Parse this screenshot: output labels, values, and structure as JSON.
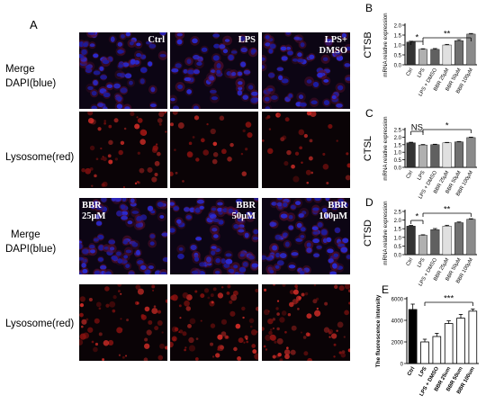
{
  "figure": {
    "panel_a_label": "A",
    "row_labels": {
      "merge_dapi_1": [
        "Merge",
        "DAPI(blue)"
      ],
      "lysosome_1": "Lysosome(red)",
      "merge_dapi_2": [
        "Merge",
        "DAPI(blue)"
      ],
      "lysosome_2": "Lysosome(red)"
    },
    "top_conditions": [
      {
        "label": "Ctrl"
      },
      {
        "label": "LPS"
      },
      {
        "label": "LPS+\nDMSO"
      }
    ],
    "bottom_conditions": [
      {
        "label": "BBR\n25μM"
      },
      {
        "label": "BBR\n50μM"
      },
      {
        "label": "BBR\n100μM"
      }
    ],
    "colors": {
      "dapi": "#1a1aa8",
      "lysosome": "#c41d10",
      "background": "#0a0508"
    }
  },
  "chart_data": [
    {
      "panel": "B",
      "type": "bar",
      "title": "CTSB",
      "ylabel": "mRNA relative expression",
      "categories": [
        "Ctrl",
        "LPS",
        "LPS + DMSO",
        "BBR 25μM",
        "BBR 50μM",
        "BBR 100μM"
      ],
      "values": [
        1.15,
        0.78,
        0.78,
        1.0,
        1.22,
        1.55
      ],
      "errors": [
        0.04,
        0.03,
        0.04,
        0.03,
        0.05,
        0.03
      ],
      "bar_colors": [
        "#333333",
        "#b0b0b0",
        "#606060",
        "#e0e0e0",
        "#707070",
        "#8a8a8a"
      ],
      "ylim": [
        0,
        2.0
      ],
      "yticks": [
        0.0,
        0.5,
        1.0,
        1.5,
        2.0
      ],
      "significance": [
        {
          "from": 0,
          "to": 1,
          "label": "*"
        },
        {
          "from": 1,
          "to": 5,
          "label": "**"
        }
      ]
    },
    {
      "panel": "C",
      "type": "bar",
      "title": "CTSL",
      "ylabel": "mRNA relative expression",
      "categories": [
        "Ctrl",
        "LPS",
        "LPS + DMSO",
        "BBR 25μM",
        "BBR 50μM",
        "BBR 100μM"
      ],
      "values": [
        1.62,
        1.48,
        1.5,
        1.62,
        1.68,
        1.97
      ],
      "errors": [
        0.04,
        0.03,
        0.03,
        0.03,
        0.03,
        0.03
      ],
      "bar_colors": [
        "#333333",
        "#b0b0b0",
        "#606060",
        "#e0e0e0",
        "#707070",
        "#8a8a8a"
      ],
      "ylim": [
        0,
        2.5
      ],
      "yticks": [
        0.0,
        0.5,
        1.0,
        1.5,
        2.0,
        2.5
      ],
      "significance": [
        {
          "from": 0,
          "to": 1,
          "label": "NS"
        },
        {
          "from": 1,
          "to": 5,
          "label": "*"
        }
      ]
    },
    {
      "panel": "D",
      "type": "bar",
      "title": "CTSD",
      "ylabel": "mRNA relative expression",
      "categories": [
        "Ctrl",
        "LPS",
        "LPS + DMSO",
        "BBR 25μM",
        "BBR 50μM",
        "BBR 100μM"
      ],
      "values": [
        1.65,
        1.12,
        1.45,
        1.65,
        1.85,
        2.05
      ],
      "errors": [
        0.04,
        0.03,
        0.06,
        0.05,
        0.04,
        0.03
      ],
      "bar_colors": [
        "#333333",
        "#b0b0b0",
        "#606060",
        "#e0e0e0",
        "#707070",
        "#8a8a8a"
      ],
      "ylim": [
        0,
        2.5
      ],
      "yticks": [
        0.0,
        0.5,
        1.0,
        1.5,
        2.0,
        2.5
      ],
      "significance": [
        {
          "from": 0,
          "to": 1,
          "label": "*"
        },
        {
          "from": 1,
          "to": 5,
          "label": "**"
        }
      ]
    },
    {
      "panel": "E",
      "type": "bar",
      "title": "",
      "ylabel": "The fluorescence intensity",
      "categories": [
        "Ctrl",
        "LPS",
        "LPS + DMSO",
        "BBR 25um",
        "BBR 50um",
        "BBR 100um"
      ],
      "values": [
        5000,
        2000,
        2500,
        3700,
        4200,
        4850
      ],
      "errors": [
        500,
        250,
        300,
        250,
        350,
        200
      ],
      "bar_colors": [
        "#000000",
        "#ffffff",
        "#ffffff",
        "#ffffff",
        "#ffffff",
        "#ffffff"
      ],
      "ylim": [
        0,
        6000
      ],
      "yticks": [
        0,
        2000,
        4000,
        6000
      ],
      "significance": [
        {
          "from": 1,
          "to": 5,
          "label": "***"
        }
      ]
    }
  ]
}
